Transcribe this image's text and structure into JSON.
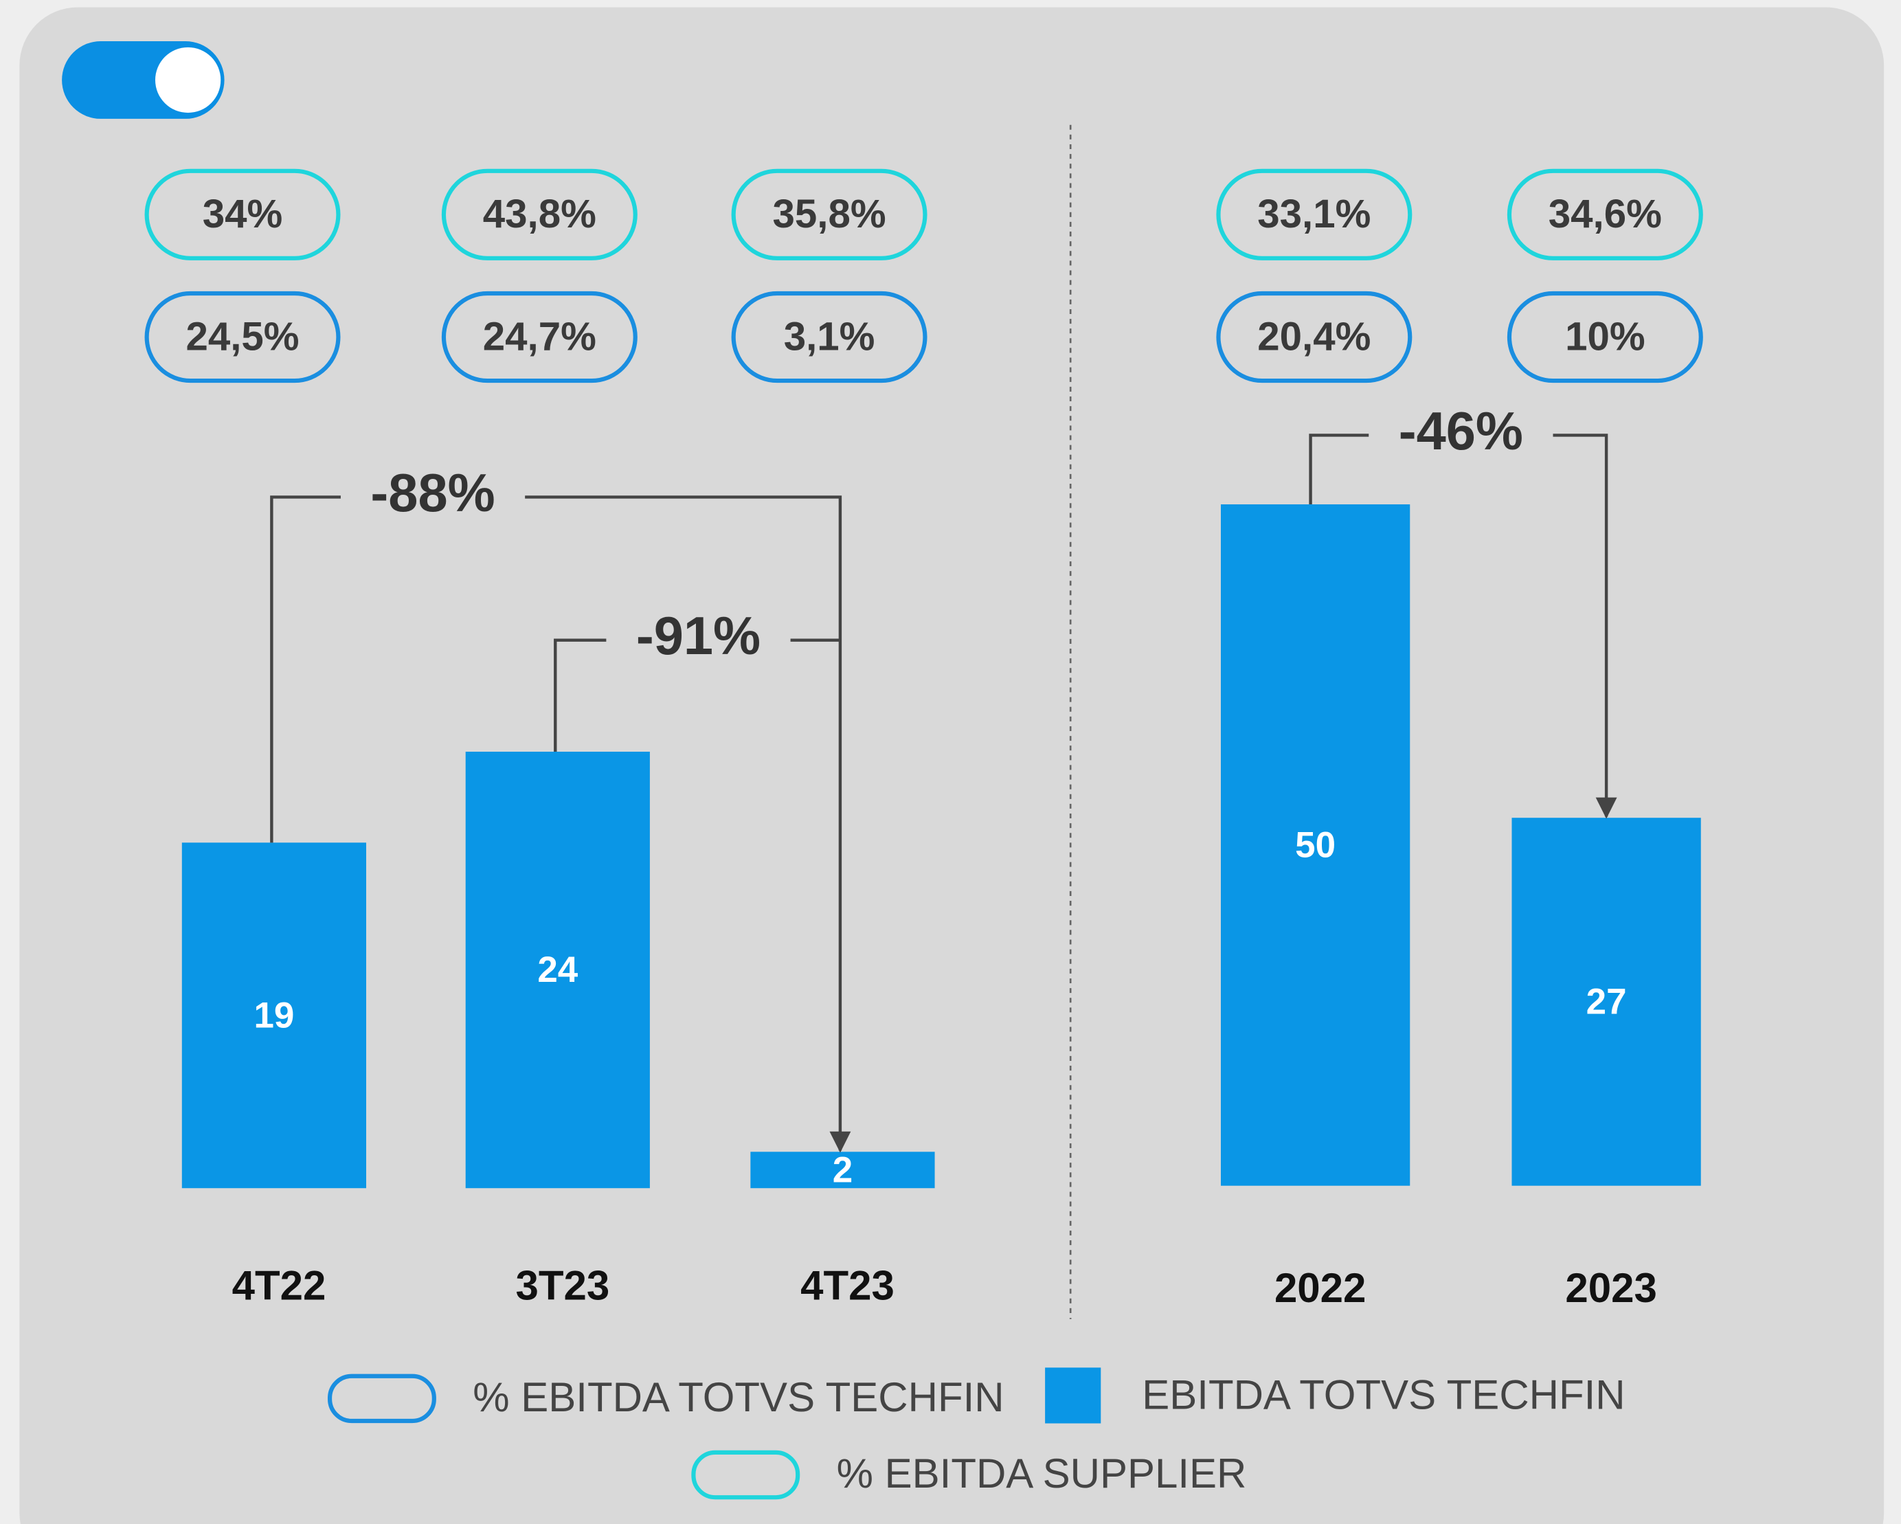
{
  "legend": [
    {
      "label": "% EBITDA TOTVS TECHFIN",
      "color": "#1a8ee0",
      "shape": "pill"
    },
    {
      "label": "EBITDA TOTVS TECHFIN",
      "color": "#0a96e6",
      "shape": "square"
    },
    {
      "label": "% EBITDA SUPPLIER",
      "color": "#1fd5dc",
      "shape": "pill"
    }
  ],
  "chart_data": [
    {
      "type": "bar",
      "categories": [
        "4T22",
        "3T23",
        "4T23"
      ],
      "ylim": [
        0,
        40
      ],
      "series": [
        {
          "values": [
            19,
            24,
            2
          ]
        },
        {
          "values": [
            24.5,
            24.7,
            3.1
          ],
          "value_labels": [
            "24,5%",
            "24,7%",
            "3,1%"
          ]
        },
        {
          "values": [
            34,
            43.8,
            35.8
          ],
          "value_labels": [
            "34%",
            "43,8%",
            "35,8%"
          ]
        }
      ],
      "annotations": [
        "-88%",
        "-91%"
      ]
    },
    {
      "type": "bar",
      "categories": [
        "2022",
        "2023"
      ],
      "ylim": [
        0,
        50
      ],
      "series": [
        {
          "values": [
            50,
            27
          ]
        },
        {
          "values": [
            20.4,
            10
          ],
          "value_labels": [
            "20,4%",
            "10%"
          ]
        },
        {
          "values": [
            33.1,
            34.6
          ],
          "value_labels": [
            "33,1%",
            "34,6%"
          ]
        }
      ],
      "annotations": [
        "-46%"
      ]
    }
  ]
}
